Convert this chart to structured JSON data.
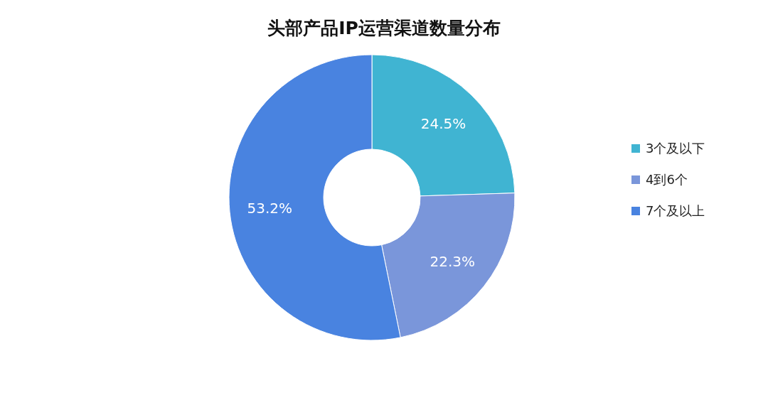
{
  "chart_data": {
    "type": "donut",
    "title": "头部产品IP运营渠道数量分布",
    "categories": [
      "3个及以下",
      "4到6个",
      "7个及以上"
    ],
    "values": [
      24.5,
      22.3,
      53.2
    ],
    "colors": [
      "#40b4d2",
      "#7a96da",
      "#4983e0"
    ],
    "value_labels": [
      "24.5%",
      "22.3%",
      "53.2%"
    ],
    "legend": "right"
  }
}
